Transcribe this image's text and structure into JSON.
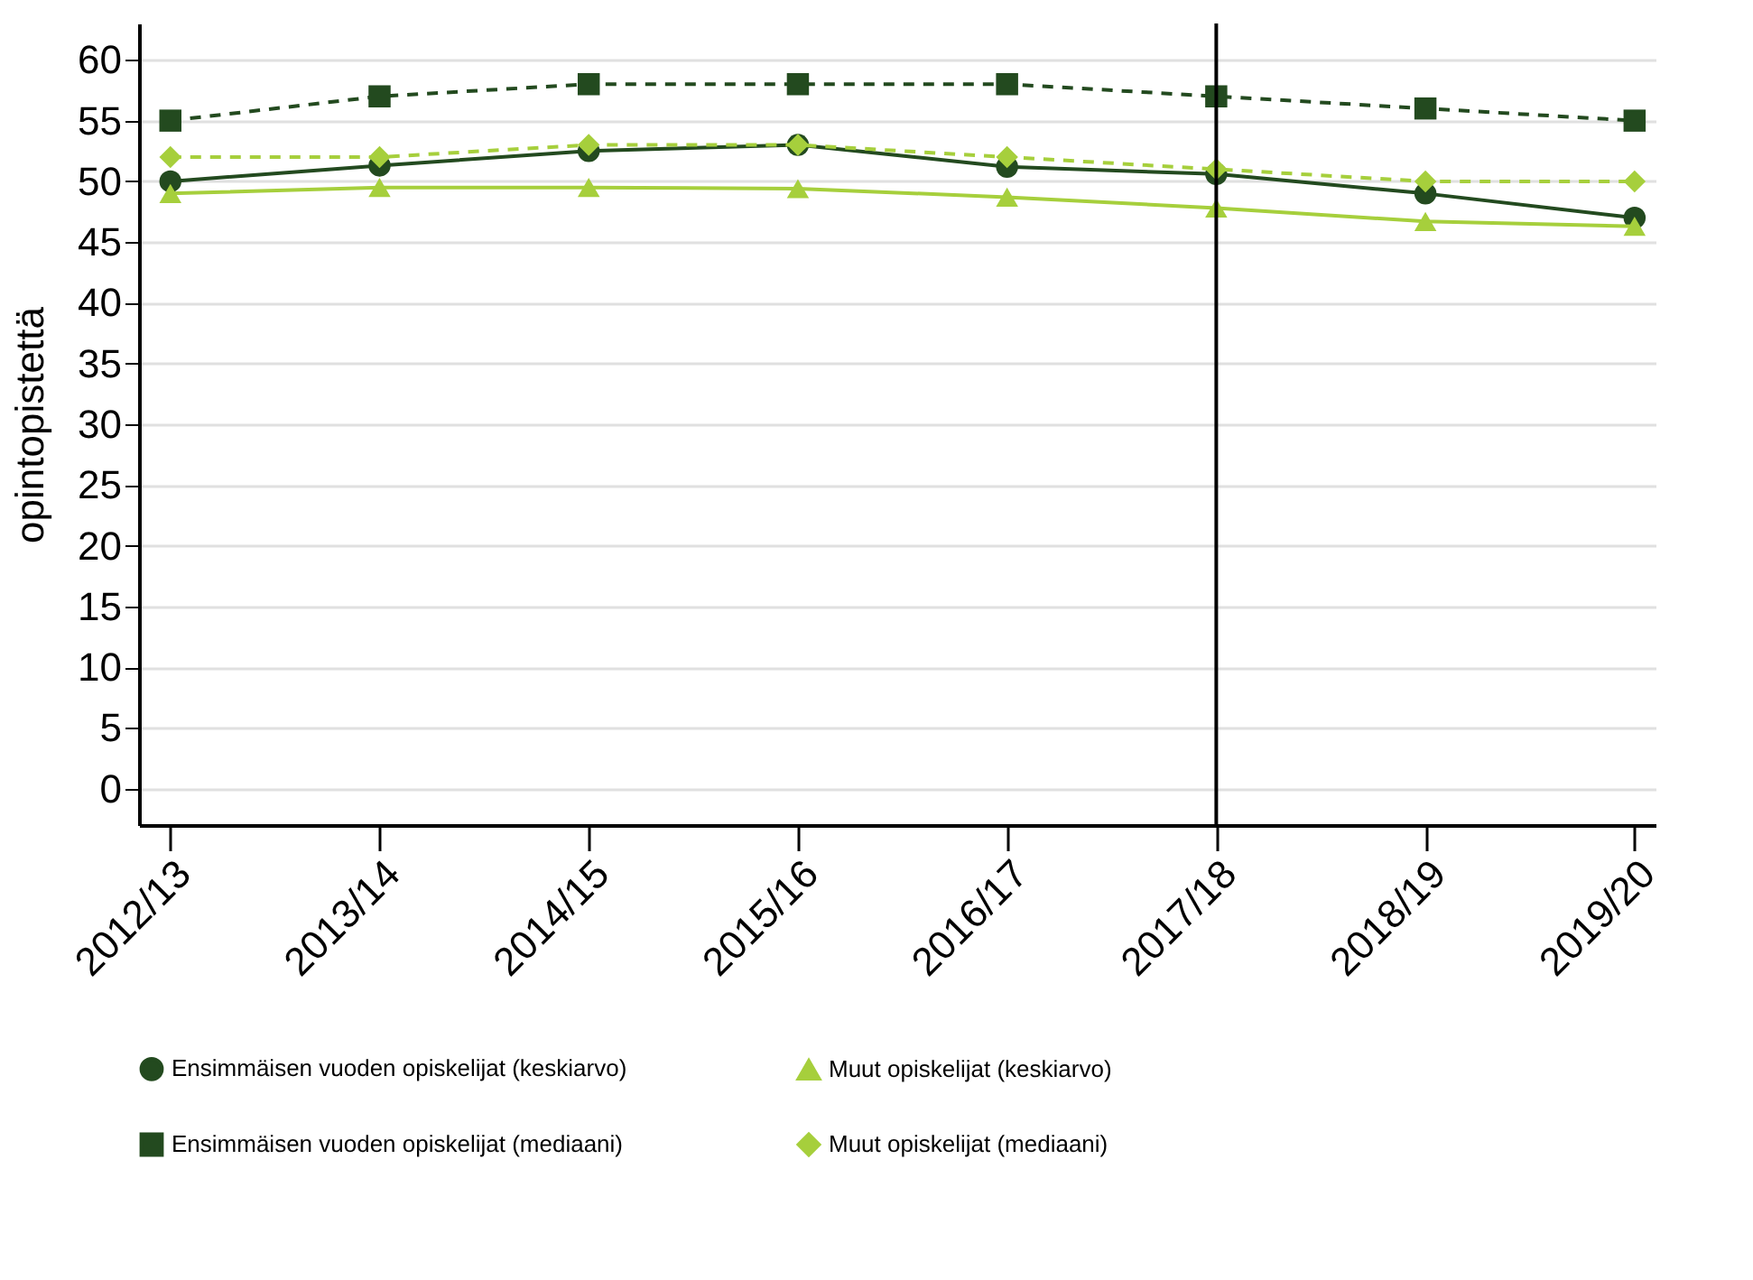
{
  "chart_data": {
    "type": "line",
    "ylabel": "opintopistettä",
    "categories": [
      "2012/13",
      "2013/14",
      "2014/15",
      "2015/16",
      "2016/17",
      "2017/18",
      "2018/19",
      "2019/20"
    ],
    "ylim": [
      -3,
      63
    ],
    "yticks": [
      0,
      5,
      10,
      15,
      20,
      25,
      30,
      35,
      40,
      45,
      50,
      55,
      60
    ],
    "grid": "y",
    "legend": "bottom",
    "ref_lines": [
      {
        "axis": "x",
        "value": "2017/18",
        "color": "#000000"
      }
    ],
    "series": [
      {
        "name": "Ensimmäisen vuoden opiskelijat (keskiarvo)",
        "color": "#234a1f",
        "marker": "circle",
        "line_style": "solid",
        "values": [
          50,
          51.3,
          52.5,
          53,
          51.2,
          50.6,
          49,
          47
        ]
      },
      {
        "name": "Muut opiskelijat (keskiarvo)",
        "color": "#a6cf3c",
        "marker": "triangle",
        "line_style": "solid",
        "values": [
          49,
          49.5,
          49.5,
          49.4,
          48.7,
          47.8,
          46.7,
          46.3
        ]
      },
      {
        "name": "Ensimmäisen vuoden opiskelijat (mediaani)",
        "color": "#234a1f",
        "marker": "square",
        "line_style": "dashed",
        "values": [
          55,
          57,
          58,
          58,
          58,
          57,
          56,
          55
        ]
      },
      {
        "name": "Muut opiskelijat (mediaani)",
        "color": "#a6cf3c",
        "marker": "diamond",
        "line_style": "dashed",
        "values": [
          52,
          52,
          53,
          53,
          52,
          51,
          50,
          50
        ]
      }
    ]
  }
}
